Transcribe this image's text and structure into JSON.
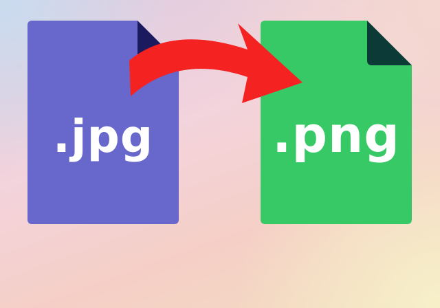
{
  "source_file": {
    "extension_label": ".jpg",
    "color": "#6767cc",
    "fold_color": "#1b1a5e"
  },
  "target_file": {
    "extension_label": ".png",
    "color": "#37c966",
    "fold_color": "#0c3a36"
  },
  "arrow": {
    "icon": "curved-arrow-right-icon",
    "color": "#f52222"
  }
}
